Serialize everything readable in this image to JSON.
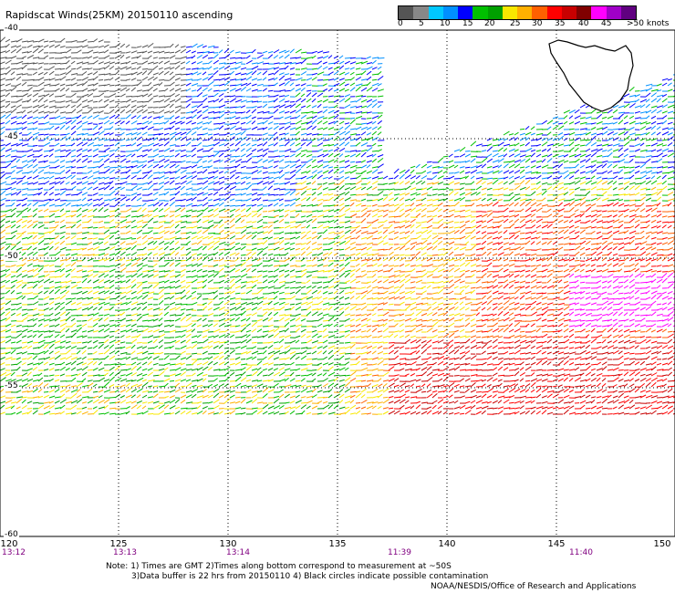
{
  "title": "Rapidscat Winds(25KM) 20150110 ascending",
  "colorbar": {
    "labels": [
      "0",
      "5",
      "10",
      "15",
      "20",
      "25",
      "30",
      "35",
      "40",
      "45",
      ">50 knots"
    ],
    "colors": [
      "#555555",
      "#888888",
      "#00c8ff",
      "#0090ff",
      "#0000ff",
      "#00c000",
      "#00a000",
      "#f8e800",
      "#ffb000",
      "#ff6000",
      "#ff0000",
      "#c80000",
      "#800000",
      "#ff00ff",
      "#a000c8",
      "#600080"
    ]
  },
  "lat_labels": [
    "-40",
    "-45",
    "-50",
    "-55",
    "-60"
  ],
  "lon_labels": [
    "120",
    "125",
    "130",
    "135",
    "140",
    "145",
    "150"
  ],
  "time_labels": [
    "13:12",
    "13:13",
    "13:14",
    "11:39",
    "11:40"
  ],
  "notes": {
    "line1": "Note: 1) Times are GMT 2)Times along bottom correspond to measurement at ~50S",
    "line2": "3)Data buffer is 22 hrs from 20150110 4) Black circles indicate possible contamination",
    "line3": "NOAA/NESDIS/Office of Research and Applications"
  }
}
